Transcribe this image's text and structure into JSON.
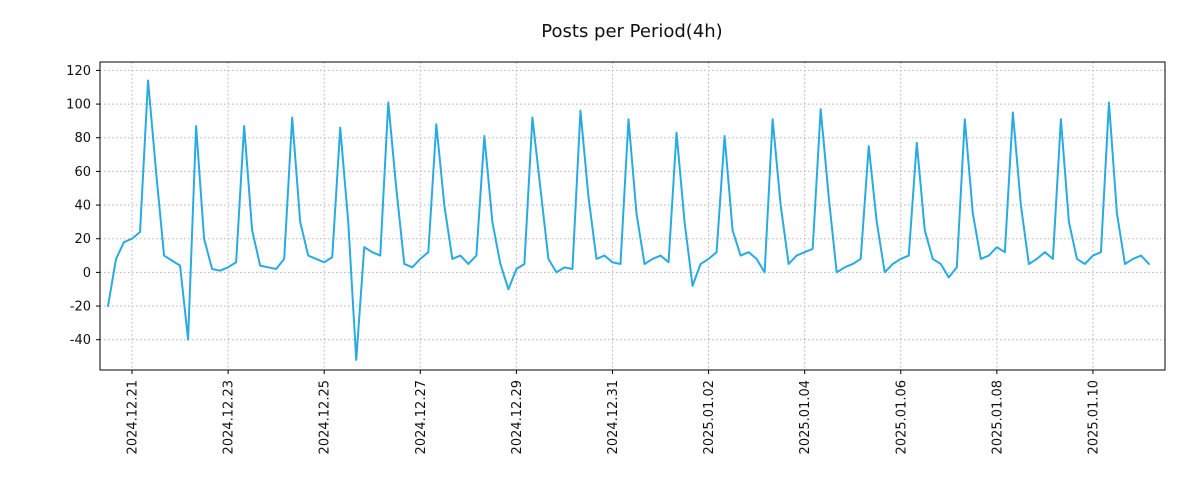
{
  "chart_data": {
    "type": "line",
    "title": "Posts per Period(4h)",
    "xlabel": "",
    "ylabel": "",
    "grid": true,
    "legend": "none",
    "line_color": "#29abe2",
    "grid_color": "#b3b3b3",
    "axis_color": "#000000",
    "ylim": [
      -58,
      125
    ],
    "xlim": [
      -1,
      132
    ],
    "y_ticks": [
      -40,
      -20,
      0,
      20,
      40,
      60,
      80,
      100,
      120
    ],
    "x_tick_labels": [
      "2024.12.21",
      "2024.12.23",
      "2024.12.25",
      "2024.12.27",
      "2024.12.29",
      "2024.12.31",
      "2025.01.02",
      "2025.01.04",
      "2025.01.06",
      "2025.01.08",
      "2025.01.10"
    ],
    "x_tick_indices": [
      3,
      15,
      27,
      39,
      51,
      63,
      75,
      87,
      99,
      111,
      123
    ],
    "period_hours": 4,
    "series": [
      {
        "name": "posts",
        "values": [
          -20,
          8,
          18,
          20,
          24,
          114,
          60,
          10,
          7,
          4,
          -40,
          87,
          20,
          2,
          1,
          3,
          6,
          87,
          25,
          4,
          3,
          2,
          8,
          92,
          30,
          10,
          8,
          6,
          9,
          86,
          30,
          -52,
          15,
          12,
          10,
          101,
          50,
          5,
          3,
          8,
          12,
          88,
          40,
          8,
          10,
          5,
          10,
          81,
          30,
          5,
          -10,
          2,
          5,
          92,
          50,
          8,
          0,
          3,
          2,
          96,
          45,
          8,
          10,
          6,
          5,
          91,
          35,
          5,
          8,
          10,
          6,
          83,
          30,
          -8,
          5,
          8,
          12,
          81,
          25,
          10,
          12,
          8,
          0,
          91,
          40,
          5,
          10,
          12,
          14,
          97,
          45,
          0,
          3,
          5,
          8,
          75,
          30,
          0,
          5,
          8,
          10,
          77,
          25,
          8,
          5,
          -3,
          3,
          91,
          35,
          8,
          10,
          15,
          12,
          95,
          40,
          5,
          8,
          12,
          8,
          91,
          30,
          8,
          5,
          10,
          12,
          101,
          35,
          5,
          8,
          10,
          5
        ]
      }
    ]
  }
}
